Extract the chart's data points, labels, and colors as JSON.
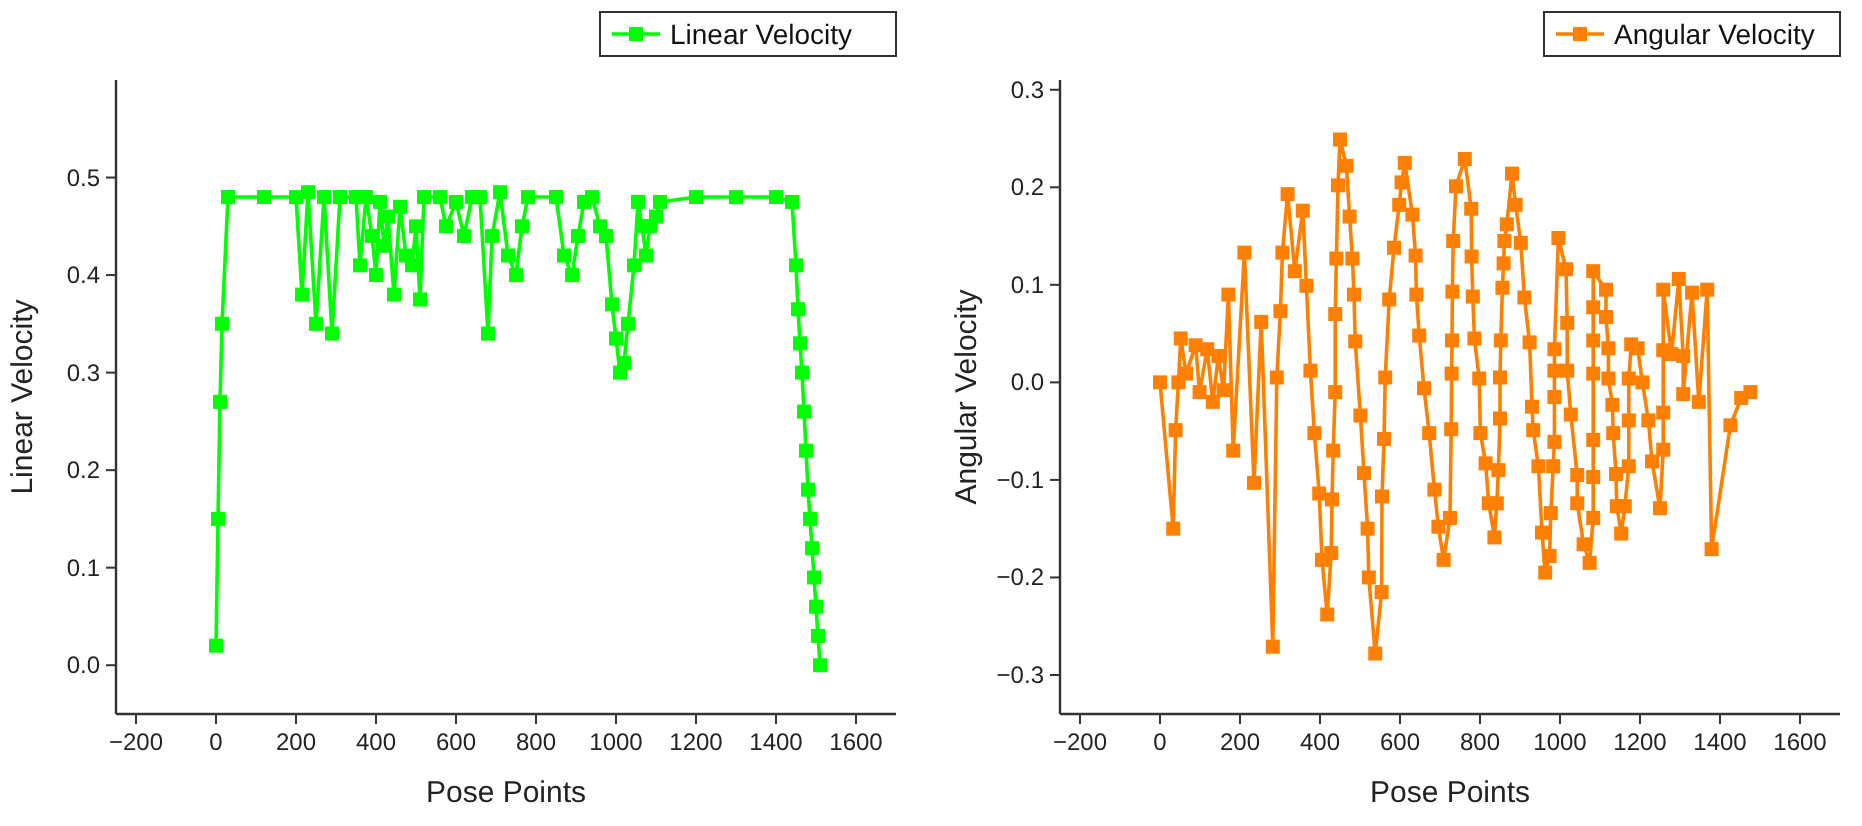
{
  "chart_data": [
    {
      "type": "line",
      "xlabel": "Pose Points",
      "ylabel": "Linear Velocity",
      "marker": "square",
      "legend": "top right",
      "xlim": [
        -250,
        1700
      ],
      "ylim": [
        -0.05,
        0.6
      ],
      "xticks": [
        {
          "value": -200,
          "label": "−200"
        },
        0,
        200,
        400,
        600,
        800,
        1000,
        1200,
        1400,
        1600
      ],
      "yticks": [
        {
          "value": 0,
          "label": "0.0"
        },
        0.1,
        0.2,
        0.3,
        0.4,
        0.5
      ],
      "series": [
        {
          "name": "Linear Velocity",
          "color": "#00ff00",
          "x": [
            0,
            5,
            10,
            15,
            30,
            120,
            200,
            215,
            230,
            250,
            270,
            290,
            310,
            350,
            360,
            375,
            390,
            400,
            410,
            420,
            430,
            445,
            460,
            475,
            490,
            500,
            510,
            520,
            560,
            575,
            600,
            620,
            640,
            660,
            680,
            690,
            710,
            730,
            750,
            765,
            780,
            850,
            870,
            890,
            905,
            920,
            940,
            960,
            975,
            990,
            1000,
            1010,
            1020,
            1030,
            1045,
            1055,
            1065,
            1075,
            1085,
            1100,
            1110,
            1200,
            1300,
            1400,
            1440,
            1450,
            1455,
            1460,
            1465,
            1470,
            1475,
            1480,
            1485,
            1490,
            1495,
            1500,
            1505,
            1510
          ],
          "values": [
            0.02,
            0.15,
            0.27,
            0.35,
            0.48,
            0.48,
            0.48,
            0.38,
            0.485,
            0.35,
            0.48,
            0.34,
            0.48,
            0.48,
            0.41,
            0.48,
            0.44,
            0.4,
            0.475,
            0.43,
            0.46,
            0.38,
            0.47,
            0.42,
            0.41,
            0.45,
            0.375,
            0.48,
            0.48,
            0.45,
            0.475,
            0.44,
            0.48,
            0.48,
            0.34,
            0.44,
            0.485,
            0.42,
            0.4,
            0.45,
            0.48,
            0.48,
            0.42,
            0.4,
            0.44,
            0.475,
            0.48,
            0.45,
            0.44,
            0.37,
            0.335,
            0.3,
            0.31,
            0.35,
            0.41,
            0.475,
            0.45,
            0.42,
            0.45,
            0.46,
            0.475,
            0.48,
            0.48,
            0.48,
            0.475,
            0.41,
            0.365,
            0.33,
            0.3,
            0.26,
            0.22,
            0.18,
            0.15,
            0.12,
            0.09,
            0.06,
            0.03,
            0
          ]
        }
      ]
    },
    {
      "type": "line",
      "xlabel": "Pose Points",
      "ylabel": "Angular Velocity",
      "marker": "square",
      "legend": "top right",
      "xlim": [
        -250,
        1700
      ],
      "ylim": [
        -0.34,
        0.31
      ],
      "xticks": [
        {
          "value": -200,
          "label": "−200"
        },
        0,
        200,
        400,
        600,
        800,
        1000,
        1200,
        1400,
        1600
      ],
      "yticks": [
        {
          "value": -0.3,
          "label": "−0.3"
        },
        {
          "value": -0.2,
          "label": "−0.2"
        },
        {
          "value": -0.1,
          "label": "−0.1"
        },
        {
          "value": 0,
          "label": "0.0"
        },
        0.1,
        0.2,
        0.3
      ],
      "series": [
        {
          "name": "Angular Velocity",
          "color": "#ff8000",
          "x": [
            0,
            33,
            39,
            46,
            52,
            65,
            89,
            99,
            118,
            132,
            146,
            159,
            171,
            183,
            211,
            235,
            253,
            282,
            292,
            301,
            306,
            319,
            337,
            357,
            366,
            376,
            386,
            398,
            405,
            418,
            428,
            430,
            433,
            438,
            438,
            441,
            445,
            450,
            466,
            474,
            481,
            485,
            488,
            501,
            510,
            519,
            522,
            538,
            554,
            555,
            560,
            563,
            573,
            585,
            598,
            604,
            612,
            631,
            639,
            641,
            648,
            660,
            673,
            686,
            696,
            709,
            725,
            728,
            729,
            730,
            731,
            733,
            740,
            762,
            778,
            779,
            782,
            786,
            798,
            801,
            814,
            822,
            836,
            842,
            846,
            850,
            850,
            852,
            856,
            859,
            861,
            867,
            880,
            889,
            902,
            911,
            924,
            930,
            933,
            946,
            955,
            963,
            974,
            977,
            983,
            986,
            986,
            986,
            986,
            996,
            1015,
            1018,
            1018,
            1027,
            1043,
            1043,
            1059,
            1074,
            1083,
            1083,
            1083,
            1083,
            1083,
            1083,
            1083,
            1115,
            1115,
            1121,
            1121,
            1131,
            1133,
            1140,
            1142,
            1153,
            1162,
            1172,
            1172,
            1172,
            1178,
            1194,
            1206,
            1221,
            1230,
            1250,
            1258,
            1258,
            1258,
            1258,
            1279,
            1297,
            1308,
            1308,
            1330,
            1347,
            1368,
            1379,
            1426,
            1453,
            1476
          ],
          "values": [
            0,
            -0.15,
            -0.049,
            0,
            0.045,
            0.009,
            0.038,
            -0.01,
            0.034,
            -0.02,
            0.027,
            -0.008,
            0.09,
            -0.07,
            0.133,
            -0.103,
            0.062,
            -0.271,
            0.005,
            0.073,
            0.133,
            0.193,
            0.114,
            0.176,
            0.099,
            0.012,
            -0.052,
            -0.114,
            -0.182,
            -0.238,
            -0.175,
            -0.12,
            -0.07,
            -0.01,
            0.07,
            0.127,
            0.202,
            0.249,
            0.222,
            0.17,
            0.127,
            0.09,
            0.042,
            -0.034,
            -0.093,
            -0.15,
            -0.2,
            -0.278,
            -0.215,
            -0.117,
            -0.058,
            0.005,
            0.085,
            0.138,
            0.182,
            0.205,
            0.225,
            0.172,
            0.13,
            0.09,
            0.048,
            -0.006,
            -0.052,
            -0.11,
            -0.148,
            -0.182,
            -0.139,
            -0.048,
            0.009,
            0.043,
            0.093,
            0.145,
            0.201,
            0.229,
            0.178,
            0.129,
            0.088,
            0.045,
            0.004,
            -0.052,
            -0.083,
            -0.124,
            -0.159,
            -0.124,
            -0.09,
            -0.037,
            0.005,
            0.043,
            0.097,
            0.122,
            0.145,
            0.162,
            0.214,
            0.182,
            0.143,
            0.087,
            0.041,
            -0.025,
            -0.049,
            -0.086,
            -0.154,
            -0.195,
            -0.178,
            -0.134,
            -0.086,
            -0.061,
            -0.015,
            0.012,
            0.034,
            0.148,
            0.116,
            0.061,
            0.012,
            -0.033,
            -0.095,
            -0.124,
            -0.166,
            -0.185,
            -0.139,
            -0.097,
            -0.059,
            0.009,
            0.043,
            0.077,
            0.114,
            0.095,
            0.067,
            0.035,
            0.004,
            -0.023,
            -0.052,
            -0.094,
            -0.127,
            -0.155,
            -0.127,
            -0.086,
            -0.039,
            0.004,
            0.039,
            0.035,
            0,
            -0.039,
            -0.081,
            -0.129,
            -0.069,
            -0.031,
            0.033,
            0.095,
            0.029,
            0.106,
            0.027,
            -0.012,
            0.092,
            -0.02,
            0.095,
            -0.171,
            -0.044,
            -0.016,
            -0.01
          ]
        }
      ]
    }
  ]
}
